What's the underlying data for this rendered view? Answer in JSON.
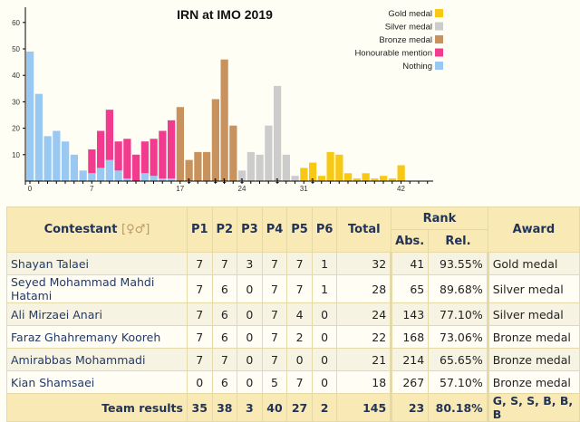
{
  "chart_data": {
    "type": "bar",
    "stacked": true,
    "title": "IRN at IMO 2019",
    "xlabel": "",
    "ylabel": "",
    "xlim": [
      0,
      45
    ],
    "ylim": [
      0,
      65
    ],
    "x_ticks": [
      0,
      7,
      17,
      24,
      31,
      42
    ],
    "y_ticks": [
      10,
      20,
      30,
      40,
      50,
      60
    ],
    "legend_position": "top-right",
    "x": [
      0,
      1,
      2,
      3,
      4,
      5,
      6,
      7,
      8,
      9,
      10,
      11,
      12,
      13,
      14,
      15,
      16,
      17,
      18,
      19,
      20,
      21,
      22,
      23,
      24,
      25,
      26,
      27,
      28,
      29,
      30,
      31,
      32,
      33,
      34,
      35,
      36,
      37,
      38,
      39,
      40,
      41,
      42
    ],
    "series": [
      {
        "name": "Nothing",
        "color": "#99c9f2",
        "values": [
          49,
          33,
          17,
          19,
          15,
          10,
          4,
          3,
          5,
          8,
          4,
          1,
          0,
          3,
          2,
          1,
          1,
          0,
          0,
          0,
          0,
          0,
          0,
          0,
          0,
          0,
          0,
          0,
          0,
          0,
          0,
          0,
          0,
          0,
          0,
          0,
          0,
          0,
          0,
          0,
          0,
          0,
          0
        ]
      },
      {
        "name": "Honourable mention",
        "color": "#f23a8e",
        "values": [
          0,
          0,
          0,
          0,
          0,
          0,
          0,
          9,
          14,
          19,
          11,
          15,
          10,
          12,
          14,
          18,
          22,
          0,
          0,
          0,
          0,
          0,
          0,
          0,
          0,
          0,
          0,
          0,
          0,
          0,
          0,
          0,
          0,
          0,
          0,
          0,
          0,
          0,
          0,
          0,
          0,
          0,
          0
        ]
      },
      {
        "name": "Bronze medal",
        "color": "#c8925e",
        "values": [
          0,
          0,
          0,
          0,
          0,
          0,
          0,
          0,
          0,
          0,
          0,
          0,
          0,
          0,
          0,
          0,
          0,
          28,
          8,
          11,
          11,
          31,
          46,
          21,
          0,
          0,
          0,
          0,
          0,
          0,
          0,
          0,
          0,
          0,
          0,
          0,
          0,
          0,
          0,
          0,
          0,
          0,
          0
        ]
      },
      {
        "name": "Silver medal",
        "color": "#cccccc",
        "values": [
          0,
          0,
          0,
          0,
          0,
          0,
          0,
          0,
          0,
          0,
          0,
          0,
          0,
          0,
          0,
          0,
          0,
          0,
          0,
          0,
          0,
          0,
          0,
          0,
          4,
          11,
          10,
          21,
          36,
          10,
          2,
          0,
          0,
          0,
          0,
          0,
          0,
          0,
          0,
          0,
          0,
          0,
          0
        ]
      },
      {
        "name": "Gold medal",
        "color": "#f7c916",
        "values": [
          0,
          0,
          0,
          0,
          0,
          0,
          0,
          0,
          0,
          0,
          0,
          0,
          0,
          0,
          0,
          0,
          0,
          0,
          0,
          0,
          0,
          0,
          0,
          0,
          0,
          0,
          0,
          0,
          0,
          0,
          0,
          5,
          7,
          2,
          11,
          10,
          3,
          1,
          3,
          1,
          2,
          1,
          6
        ]
      }
    ],
    "team_markers": {
      "x": [
        18,
        21,
        22,
        24,
        28,
        32
      ],
      "label": "1"
    },
    "legend_order": [
      "Gold medal",
      "Silver medal",
      "Bronze medal",
      "Honourable mention",
      "Nothing"
    ]
  },
  "table": {
    "headers": {
      "contestant": "Contestant",
      "contestant_icon": "[♀♂]",
      "p": [
        "P1",
        "P2",
        "P3",
        "P4",
        "P5",
        "P6"
      ],
      "total": "Total",
      "rank": "Rank",
      "abs": "Abs.",
      "rel": "Rel.",
      "award": "Award"
    },
    "rows": [
      {
        "name": "Shayan Talaei",
        "p": [
          "7",
          "7",
          "3",
          "7",
          "7",
          "1"
        ],
        "total": "32",
        "abs": "41",
        "rel": "93.55%",
        "award": "Gold medal"
      },
      {
        "name": "Seyed Mohammad Mahdi Hatami",
        "p": [
          "7",
          "6",
          "0",
          "7",
          "7",
          "1"
        ],
        "total": "28",
        "abs": "65",
        "rel": "89.68%",
        "award": "Silver medal"
      },
      {
        "name": "Ali Mirzaei Anari",
        "p": [
          "7",
          "6",
          "0",
          "7",
          "4",
          "0"
        ],
        "total": "24",
        "abs": "143",
        "rel": "77.10%",
        "award": "Silver medal"
      },
      {
        "name": "Faraz Ghahremany Kooreh",
        "p": [
          "7",
          "6",
          "0",
          "7",
          "2",
          "0"
        ],
        "total": "22",
        "abs": "168",
        "rel": "73.06%",
        "award": "Bronze medal"
      },
      {
        "name": "Amirabbas Mohammadi",
        "p": [
          "7",
          "7",
          "0",
          "7",
          "0",
          "0"
        ],
        "total": "21",
        "abs": "214",
        "rel": "65.65%",
        "award": "Bronze medal"
      },
      {
        "name": "Kian Shamsaei",
        "p": [
          "0",
          "6",
          "0",
          "5",
          "7",
          "0"
        ],
        "total": "18",
        "abs": "267",
        "rel": "57.10%",
        "award": "Bronze medal"
      }
    ],
    "team": {
      "label": "Team results",
      "p": [
        "35",
        "38",
        "3",
        "40",
        "27",
        "2"
      ],
      "total": "145",
      "abs": "23",
      "rel": "80.18%",
      "award": "G, S, S, B, B, B"
    }
  }
}
